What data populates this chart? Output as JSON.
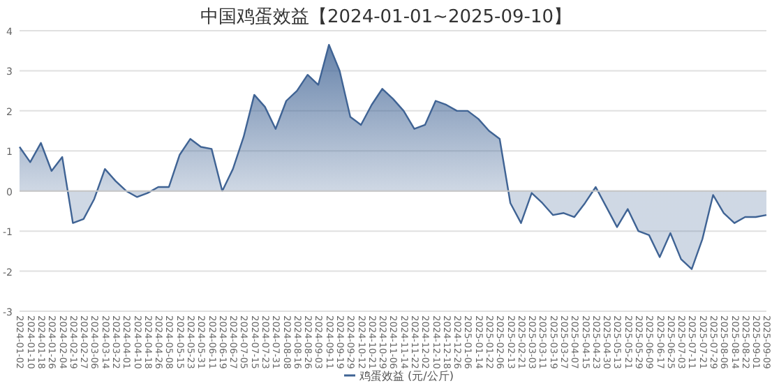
{
  "chart_data": {
    "type": "area",
    "title": "中国鸡蛋效益【2024-01-01~2025-09-10】",
    "categories": [
      "2024-01-02",
      "2024-01-10",
      "2024-01-18",
      "2024-01-26",
      "2024-02-04",
      "2024-02-19",
      "2024-02-27",
      "2024-03-06",
      "2024-03-14",
      "2024-03-22",
      "2024-04-01",
      "2024-04-10",
      "2024-04-18",
      "2024-04-26",
      "2024-05-08",
      "2024-05-15",
      "2024-05-23",
      "2024-05-31",
      "2024-06-11",
      "2024-06-19",
      "2024-06-27",
      "2024-07-05",
      "2024-07-15",
      "2024-07-23",
      "2024-07-31",
      "2024-08-08",
      "2024-08-16",
      "2024-08-26",
      "2024-09-03",
      "2024-09-11",
      "2024-09-19",
      "2024-09-29",
      "2024-10-12",
      "2024-10-21",
      "2024-10-29",
      "2024-11-06",
      "2024-11-14",
      "2024-11-22",
      "2024-12-02",
      "2024-12-10",
      "2024-12-18",
      "2024-12-26",
      "2025-01-06",
      "2025-01-14",
      "2025-01-22",
      "2025-02-06",
      "2025-02-13",
      "2025-02-21",
      "2025-03-03",
      "2025-03-11",
      "2025-03-19",
      "2025-03-27",
      "2025-04-07",
      "2025-04-15",
      "2025-04-23",
      "2025-04-30",
      "2025-05-13",
      "2025-05-21",
      "2025-05-29",
      "2025-06-09",
      "2025-06-17",
      "2025-06-25",
      "2025-07-03",
      "2025-07-11",
      "2025-07-21",
      "2025-07-29",
      "2025-08-06",
      "2025-08-14",
      "2025-08-22",
      "2025-09-01",
      "2025-09-09"
    ],
    "series": [
      {
        "name": "鸡蛋效益 (元/公斤)",
        "color": "#3f6394",
        "values": [
          1.1,
          0.72,
          1.2,
          0.5,
          0.85,
          -0.8,
          -0.7,
          -0.2,
          0.55,
          0.25,
          0.0,
          -0.15,
          -0.05,
          0.1,
          0.1,
          0.9,
          1.3,
          1.1,
          1.05,
          0.0,
          0.55,
          1.35,
          2.4,
          2.1,
          1.55,
          2.25,
          2.5,
          2.9,
          2.65,
          3.65,
          3.0,
          1.85,
          1.65,
          2.15,
          2.55,
          2.3,
          2.0,
          1.55,
          1.65,
          2.25,
          2.15,
          2.0,
          2.0,
          1.8,
          1.5,
          1.3,
          -0.3,
          -0.8,
          -0.05,
          -0.3,
          -0.6,
          -0.55,
          -0.65,
          -0.3,
          0.1,
          -0.4,
          -0.9,
          -0.45,
          -1.0,
          -1.1,
          -1.65,
          -1.05,
          -1.7,
          -1.95,
          -1.2,
          -0.1,
          -0.55,
          -0.8,
          -0.65,
          -0.65,
          -0.6
        ]
      }
    ],
    "ylim": [
      -3,
      4
    ],
    "yticks": [
      -3,
      -2,
      -1,
      0,
      1,
      2,
      3,
      4
    ],
    "grid": "y",
    "legend": "bottom",
    "marker": "none",
    "line_style": "solid"
  }
}
